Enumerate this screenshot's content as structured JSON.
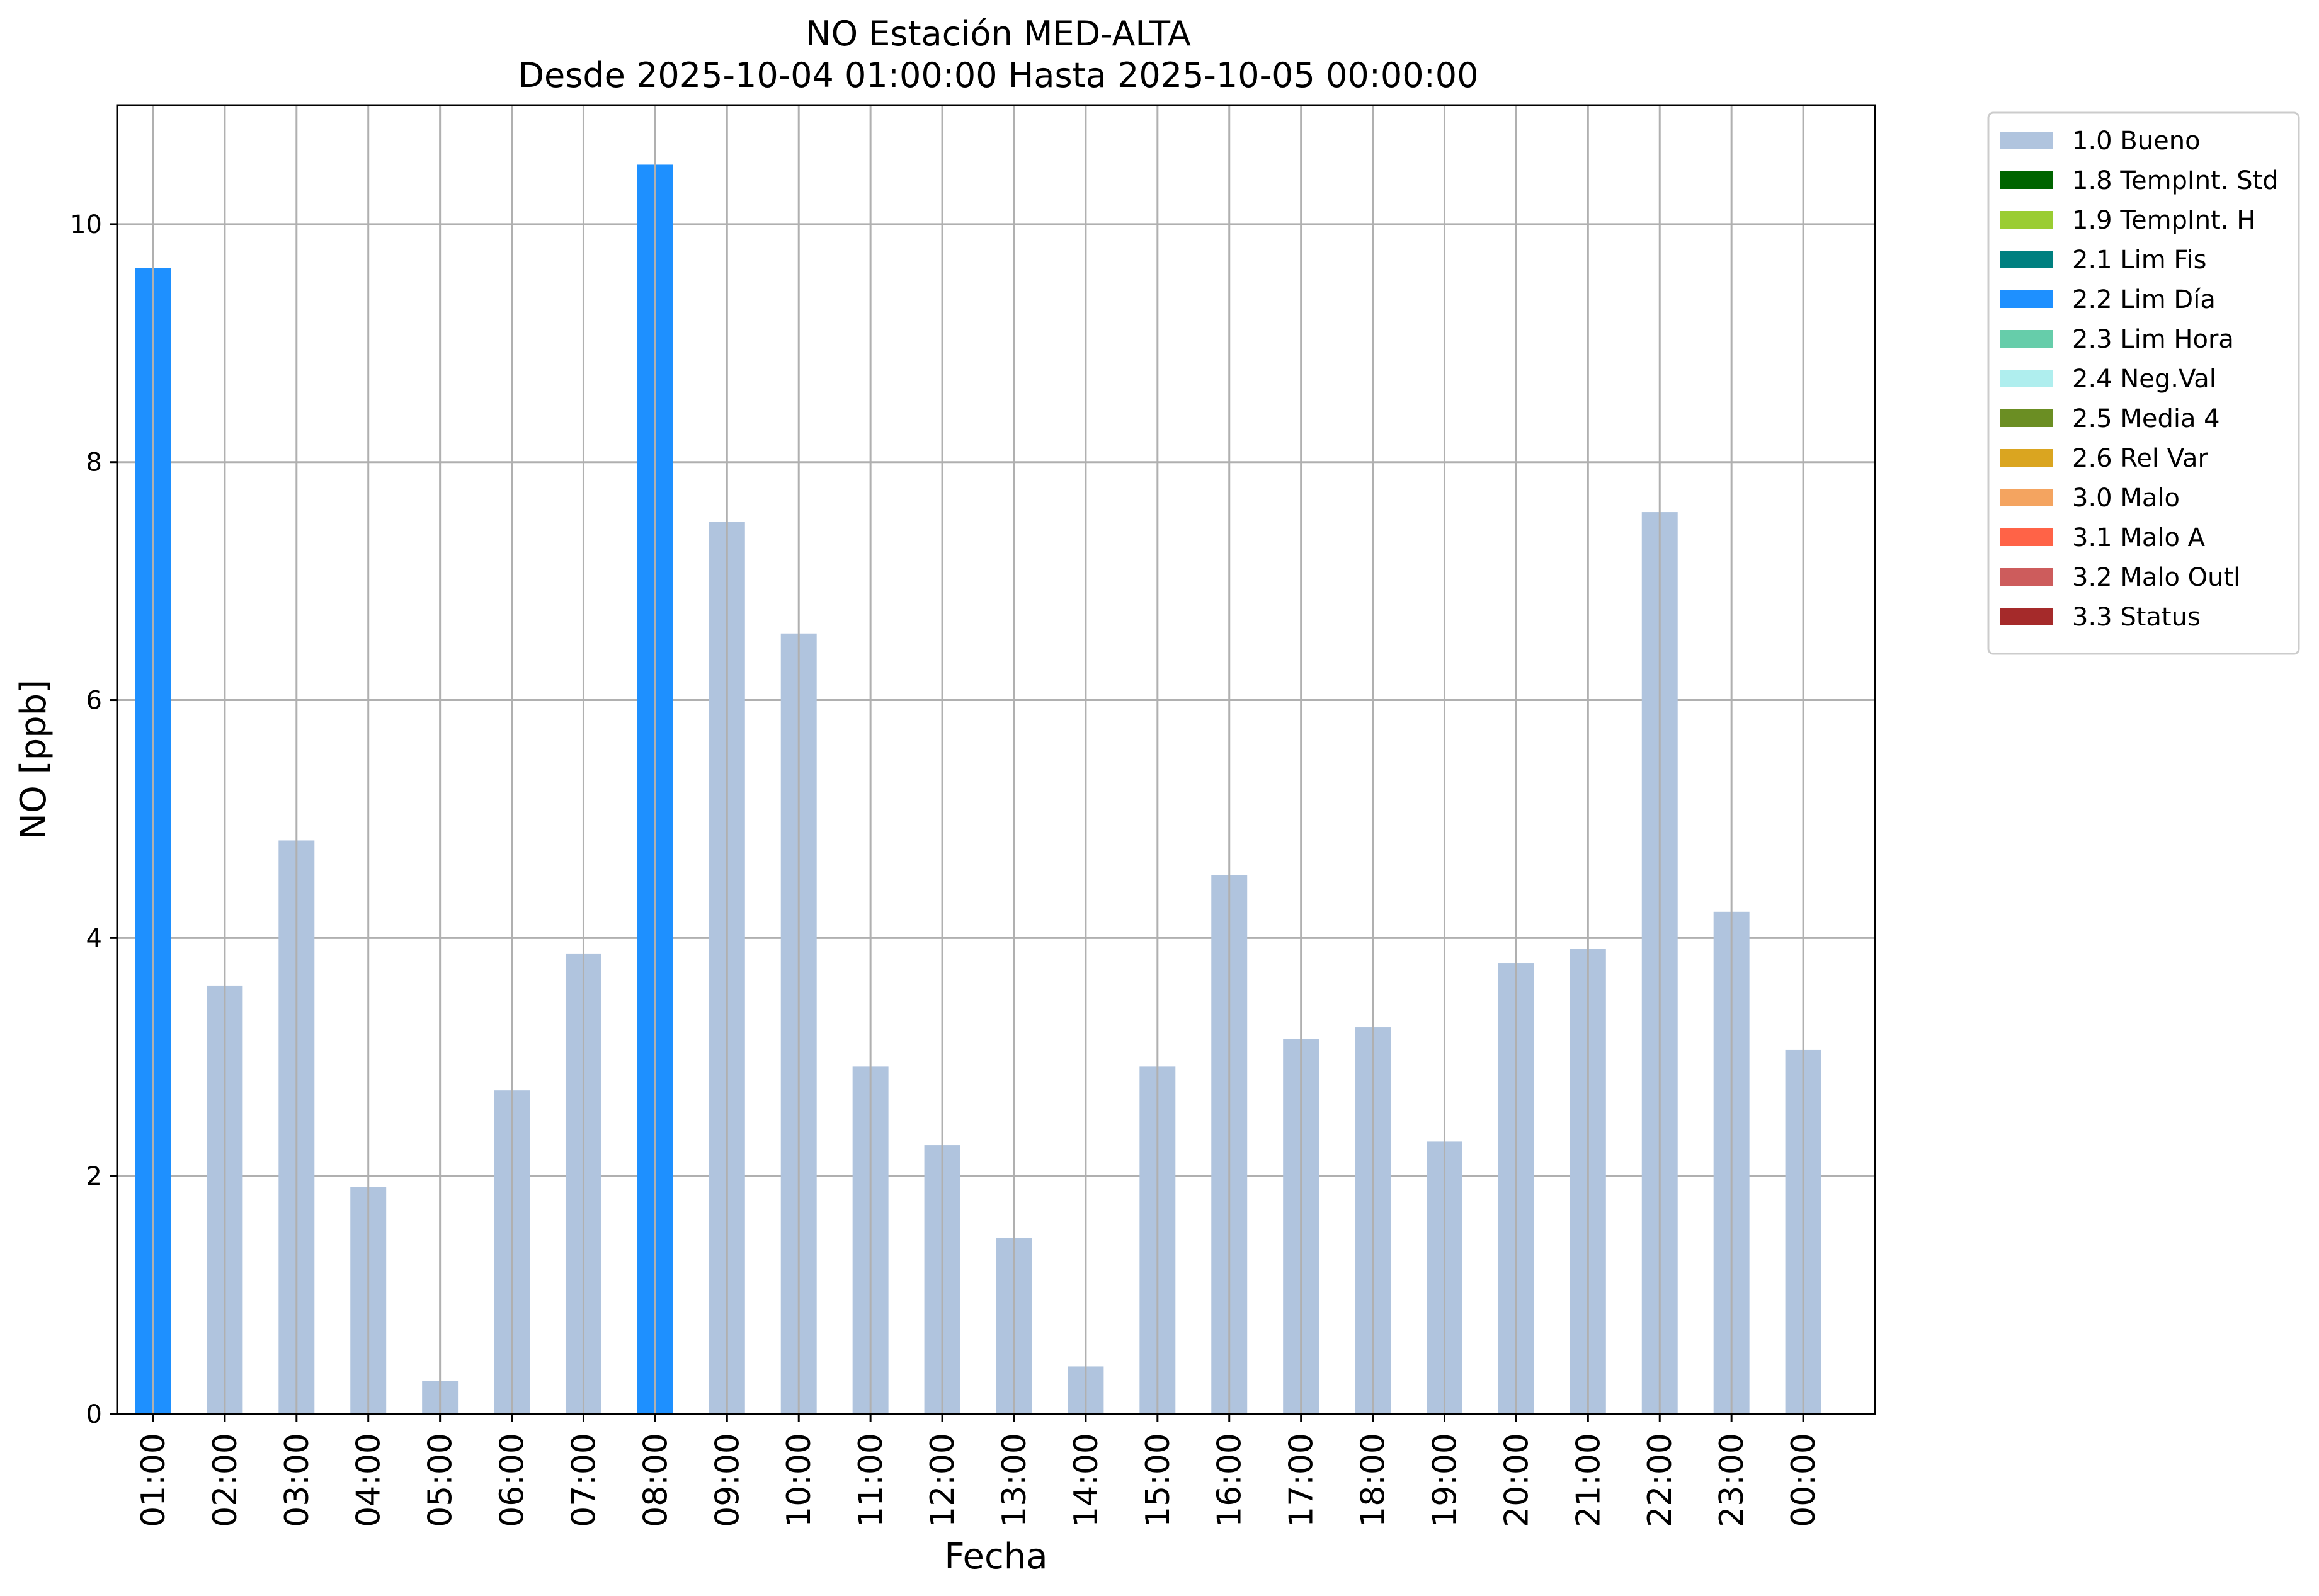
{
  "chart_data": {
    "type": "bar",
    "title": "NO Estación MED-ALTA",
    "subtitle": "Desde 2025-10-04 01:00:00 Hasta 2025-10-05 00:00:00",
    "xlabel": "Fecha",
    "ylabel": "NO [ppb]",
    "ylim": [
      0,
      11
    ],
    "yticks": [
      0,
      2,
      4,
      6,
      8,
      10
    ],
    "grid": true,
    "legend_position": "outside-top-right",
    "categories": [
      "01:00",
      "02:00",
      "03:00",
      "04:00",
      "05:00",
      "06:00",
      "07:00",
      "08:00",
      "09:00",
      "10:00",
      "11:00",
      "12:00",
      "13:00",
      "14:00",
      "15:00",
      "16:00",
      "17:00",
      "18:00",
      "19:00",
      "20:00",
      "21:00",
      "22:00",
      "23:00",
      "00:00"
    ],
    "values": [
      9.63,
      3.6,
      4.82,
      1.91,
      0.28,
      2.72,
      3.87,
      10.5,
      7.5,
      6.56,
      2.92,
      2.26,
      1.48,
      0.4,
      2.92,
      4.53,
      3.15,
      3.25,
      2.29,
      3.79,
      3.91,
      7.58,
      4.22,
      3.06
    ],
    "flags": [
      "2.2 Lim Día",
      "1.0 Bueno",
      "1.0 Bueno",
      "1.0 Bueno",
      "1.0 Bueno",
      "1.0 Bueno",
      "1.0 Bueno",
      "2.2 Lim Día",
      "1.0 Bueno",
      "1.0 Bueno",
      "1.0 Bueno",
      "1.0 Bueno",
      "1.0 Bueno",
      "1.0 Bueno",
      "1.0 Bueno",
      "1.0 Bueno",
      "1.0 Bueno",
      "1.0 Bueno",
      "1.0 Bueno",
      "1.0 Bueno",
      "1.0 Bueno",
      "1.0 Bueno",
      "1.0 Bueno",
      "1.0 Bueno"
    ],
    "legend": [
      {
        "label": "1.0 Bueno",
        "color": "#b0c4de"
      },
      {
        "label": "1.8 TempInt. Std",
        "color": "#006400"
      },
      {
        "label": "1.9 TempInt. H",
        "color": "#9acd32"
      },
      {
        "label": "2.1 Lim Fis",
        "color": "#008080"
      },
      {
        "label": "2.2 Lim Día",
        "color": "#1e90ff"
      },
      {
        "label": "2.3 Lim Hora",
        "color": "#66cdaa"
      },
      {
        "label": "2.4 Neg.Val",
        "color": "#afeeee"
      },
      {
        "label": "2.5 Media 4",
        "color": "#6b8e23"
      },
      {
        "label": "2.6 Rel Var",
        "color": "#daa520"
      },
      {
        "label": "3.0 Malo",
        "color": "#f4a460"
      },
      {
        "label": "3.1 Malo A",
        "color": "#ff6347"
      },
      {
        "label": "3.2 Malo Outl",
        "color": "#cd5c5c"
      },
      {
        "label": "3.3 Status",
        "color": "#a52a2a"
      }
    ]
  }
}
